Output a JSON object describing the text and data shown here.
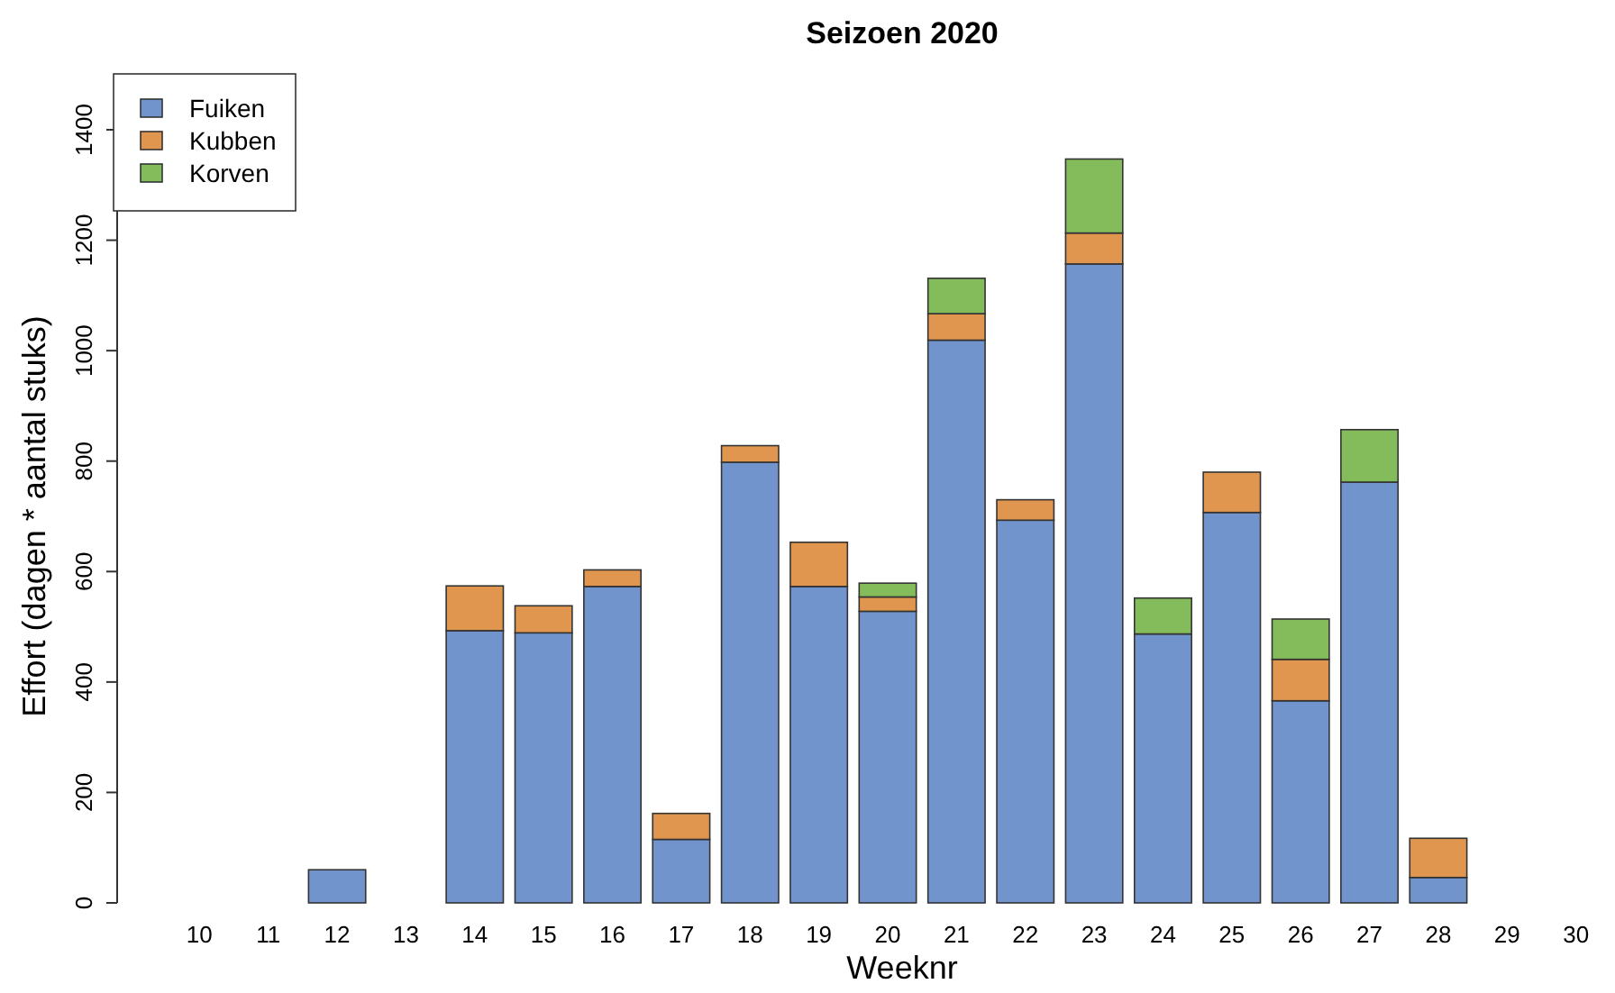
{
  "chart_data": {
    "type": "bar",
    "title": "Seizoen 2020",
    "xlabel": "Weeknr",
    "ylabel": "Effort (dagen * aantal stuks)",
    "stacked": true,
    "legend": "top left",
    "grid": false,
    "categories": [
      "10",
      "11",
      "12",
      "13",
      "14",
      "15",
      "16",
      "17",
      "18",
      "19",
      "20",
      "21",
      "22",
      "23",
      "24",
      "25",
      "26",
      "27",
      "28",
      "29",
      "30"
    ],
    "series": [
      {
        "name": "Fuiken",
        "color": "#7294cc",
        "values": [
          0,
          0,
          60,
          0,
          493,
          489,
          573,
          115,
          798,
          573,
          528,
          1019,
          693,
          1157,
          487,
          707,
          366,
          762,
          46,
          0,
          0
        ]
      },
      {
        "name": "Kubben",
        "color": "#e0964e",
        "values": [
          0,
          0,
          0,
          0,
          81,
          49,
          30,
          47,
          30,
          80,
          26,
          48,
          37,
          56,
          0,
          73,
          75,
          0,
          71,
          0,
          0
        ]
      },
      {
        "name": "Korven",
        "color": "#84bb5b",
        "values": [
          0,
          0,
          0,
          0,
          0,
          0,
          0,
          0,
          0,
          0,
          25,
          64,
          0,
          134,
          65,
          0,
          73,
          95,
          0,
          0,
          0
        ]
      }
    ],
    "ylim": [
      0,
      1400
    ],
    "yticks": [
      0,
      200,
      400,
      600,
      800,
      1000,
      1200,
      1400
    ]
  }
}
